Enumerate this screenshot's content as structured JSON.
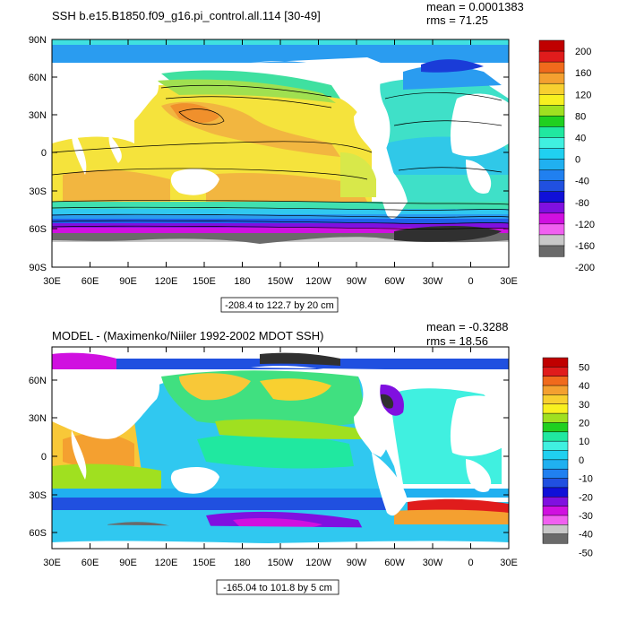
{
  "panels": [
    {
      "id": "ssh",
      "title": "SSH b.e15.B1850.f09_g16.pi_control.all.114 [30-49]",
      "mean_label": "mean = 0.0001383",
      "rms_label": "rms = 71.25",
      "range_label": "-208.4 to 122.7 by 20 cm",
      "lat_labels": [
        "90N",
        "60N",
        "30N",
        "0",
        "30S",
        "60S",
        "90S"
      ],
      "lon_labels": [
        "30E",
        "60E",
        "90E",
        "120E",
        "150E",
        "180",
        "150W",
        "120W",
        "90W",
        "60W",
        "30W",
        "0",
        "30E"
      ],
      "colorbar_labels": [
        "200",
        "160",
        "120",
        "80",
        "40",
        "0",
        "-40",
        "-80",
        "-120",
        "-160",
        "-200"
      ],
      "colors": {
        "tropical_pacific": "#f5e33c",
        "pacific_east": "#d8e84a",
        "kuroshio": "#f0902c",
        "subtropical": "#f2b640",
        "atlantic": "#3fe0c8",
        "southern_ocean": "#2a9cf0",
        "antarctic_grey": "#5a5a5a",
        "land": "#ffffff"
      }
    },
    {
      "id": "diff",
      "title": "MODEL - (Maximenko/Niiler 1992-2002 MDOT SSH)",
      "mean_label": "mean = -0.3288",
      "rms_label": "rms = 18.56",
      "range_label": "-165.04 to 101.8 by 5 cm",
      "lat_labels": [
        "60N",
        "30N",
        "0",
        "30S",
        "60S"
      ],
      "lon_labels": [
        "30E",
        "60E",
        "90E",
        "120E",
        "150E",
        "180",
        "150W",
        "120W",
        "90W",
        "60W",
        "30W",
        "0",
        "30E"
      ],
      "colorbar_labels": [
        "50",
        "40",
        "30",
        "20",
        "10",
        "0",
        "-10",
        "-20",
        "-30",
        "-40",
        "-50"
      ],
      "colors": {
        "background_ocean": "#30c8f0",
        "warm_patch": "#f8c838",
        "green_patch": "#40e080",
        "southern": "#8020e0",
        "land": "#ffffff"
      }
    }
  ],
  "colorbar_colors": [
    "#c00000",
    "#e01c1c",
    "#f06a1c",
    "#f4a030",
    "#f8d030",
    "#f8f020",
    "#a0e020",
    "#20d020",
    "#20e8a0",
    "#40f0e0",
    "#20d0f0",
    "#20b0f0",
    "#2080f0",
    "#2050e0",
    "#1010d8",
    "#8010e0",
    "#d010e0",
    "#f060f0",
    "#c8c8c8",
    "#6a6a6a"
  ]
}
